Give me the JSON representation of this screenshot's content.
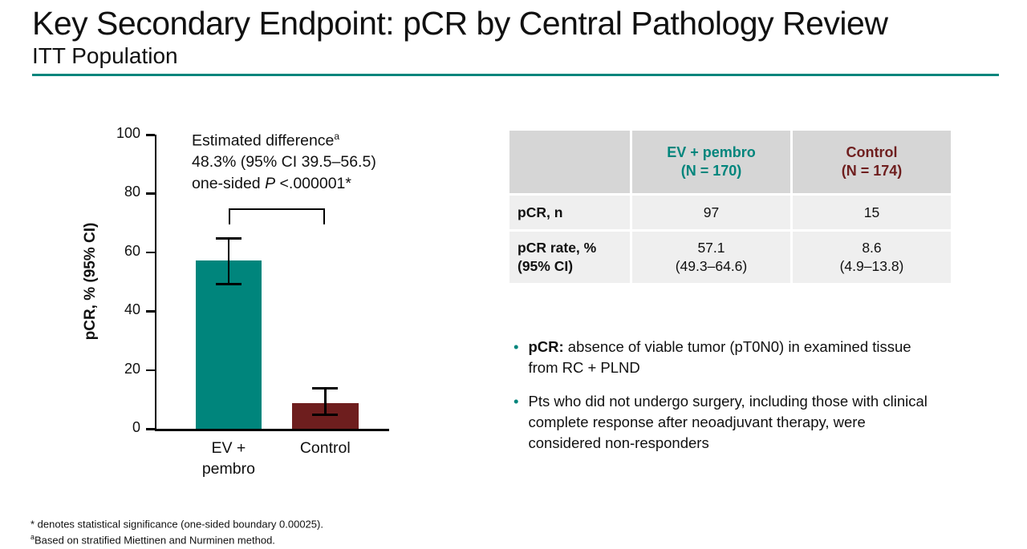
{
  "slide": {
    "title": "Key Secondary Endpoint: pCR by Central Pathology Review",
    "subtitle": "ITT Population"
  },
  "colors": {
    "teal": "#00857C",
    "dark_red": "#6E1E1E"
  },
  "chart_data": {
    "type": "bar",
    "title": "",
    "xlabel": "",
    "ylabel": "pCR, % (95% CI)",
    "ylim": [
      0,
      100
    ],
    "yticks": [
      0,
      20,
      40,
      60,
      80,
      100
    ],
    "grid": false,
    "legend": "none",
    "categories": [
      "EV +\npembro",
      "Control"
    ],
    "values": [
      57.1,
      8.6
    ],
    "ci_low": [
      49.3,
      4.9
    ],
    "ci_high": [
      64.6,
      13.8
    ],
    "bar_colors": [
      "#00857C",
      "#6E1E1E"
    ],
    "bracket_y": 75,
    "annotation": {
      "line1": "Estimated difference",
      "sup": "a",
      "line2": "48.3% (95% CI 39.5–56.5)",
      "line3_pre": "one-sided ",
      "line3_italic": "P",
      "line3_post": " <.000001*"
    }
  },
  "table": {
    "headers": [
      "",
      "EV + pembro\n(N = 170)",
      "Control\n(N = 174)"
    ],
    "rows": [
      {
        "label": "pCR, n",
        "values": [
          "97",
          "15"
        ]
      },
      {
        "label": "pCR rate, %\n(95% CI)",
        "values": [
          "57.1\n(49.3–64.6)",
          "8.6\n(4.9–13.8)"
        ]
      }
    ]
  },
  "bullets": [
    {
      "bold": "pCR:",
      "text": " absence of viable tumor (pT0N0) in examined tissue from RC + PLND"
    },
    {
      "bold": "",
      "text": "Pts who did not undergo surgery, including those with clinical complete response after neoadjuvant therapy, were considered non-responders"
    }
  ],
  "footnotes": [
    {
      "sup": "",
      "text": "* denotes statistical significance (one-sided boundary 0.00025)."
    },
    {
      "sup": "a",
      "text": "Based on stratified Miettinen and Nurminen method."
    }
  ]
}
